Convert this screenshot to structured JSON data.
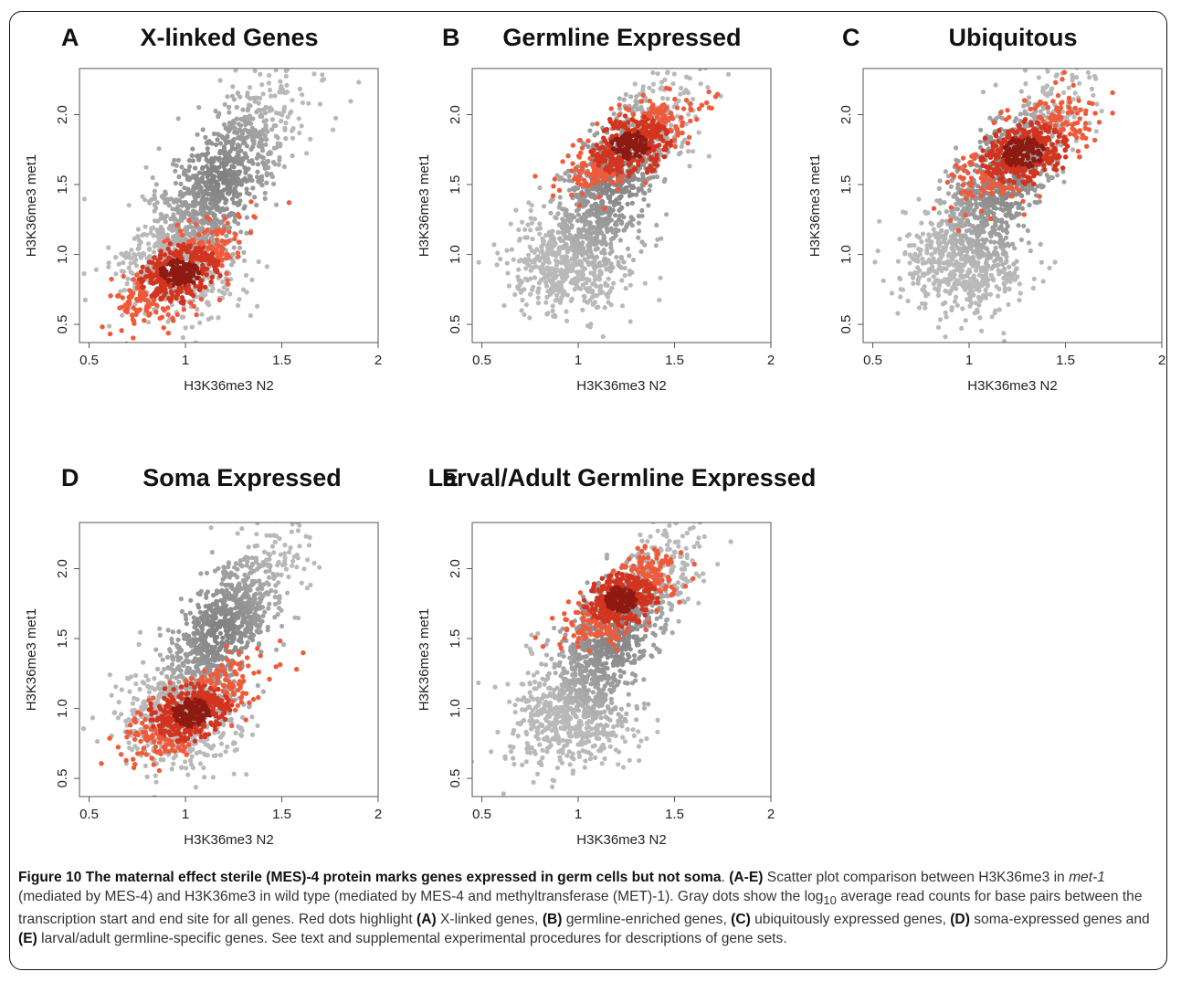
{
  "chart_data": [
    {
      "type": "scatter",
      "letter": "A",
      "title": "X-linked Genes",
      "xlabel": "H3K36me3 N2",
      "ylabel": "H3K36me3 met1",
      "xlim": [
        0.45,
        2.0
      ],
      "ylim": [
        0.37,
        2.33
      ],
      "xticks": [
        "0.5",
        "1",
        "1.5",
        "2"
      ],
      "yticks": [
        "0.5",
        "1.0",
        "1.5",
        "2.0"
      ],
      "background_density": {
        "center": [
          1.18,
          1.55
        ],
        "sd": [
          0.2,
          0.35
        ],
        "correlation": 0.78
      },
      "highlight": {
        "center": [
          0.97,
          0.87
        ],
        "spread": 0.2
      },
      "colors": {
        "gray": "#a9a9a9",
        "highlight": "#f05a3a",
        "dense": "#8e1a12"
      }
    },
    {
      "type": "scatter",
      "letter": "B",
      "title": "Germline Expressed",
      "xlabel": "H3K36me3 N2",
      "ylabel": "H3K36me3 met1",
      "xlim": [
        0.45,
        2.0
      ],
      "ylim": [
        0.37,
        2.33
      ],
      "xticks": [
        "0.5",
        "1",
        "1.5",
        "2"
      ],
      "yticks": [
        "0.5",
        "1.0",
        "1.5",
        "2.0"
      ],
      "background_density": {
        "center": [
          1.18,
          1.55
        ],
        "sd": [
          0.2,
          0.35
        ],
        "correlation": 0.78
      },
      "highlight": {
        "center": [
          1.27,
          1.78
        ],
        "spread": 0.2
      },
      "colors": {
        "gray": "#a9a9a9",
        "highlight": "#f05a3a",
        "dense": "#8e1a12"
      }
    },
    {
      "type": "scatter",
      "letter": "C",
      "title": "Ubiquitous",
      "xlabel": "H3K36me3 N2",
      "ylabel": "H3K36me3 met1",
      "xlim": [
        0.45,
        2.0
      ],
      "ylim": [
        0.37,
        2.33
      ],
      "xticks": [
        "0.5",
        "1",
        "1.5",
        "2"
      ],
      "yticks": [
        "0.5",
        "1.0",
        "1.5",
        "2.0"
      ],
      "background_density": {
        "center": [
          1.18,
          1.55
        ],
        "sd": [
          0.2,
          0.35
        ],
        "correlation": 0.78
      },
      "highlight": {
        "center": [
          1.28,
          1.73
        ],
        "spread": 0.22
      },
      "colors": {
        "gray": "#a9a9a9",
        "highlight": "#f05a3a",
        "dense": "#8e1a12"
      }
    },
    {
      "type": "scatter",
      "letter": "D",
      "title": "Soma Expressed",
      "xlabel": "H3K36me3 N2",
      "ylabel": "H3K36me3 met1",
      "xlim": [
        0.45,
        2.0
      ],
      "ylim": [
        0.37,
        2.33
      ],
      "xticks": [
        "0.5",
        "1",
        "1.5",
        "2"
      ],
      "yticks": [
        "0.5",
        "1.0",
        "1.5",
        "2.0"
      ],
      "background_density": {
        "center": [
          1.18,
          1.55
        ],
        "sd": [
          0.2,
          0.35
        ],
        "correlation": 0.78
      },
      "highlight": {
        "center": [
          1.03,
          0.97
        ],
        "spread": 0.2
      },
      "colors": {
        "gray": "#a9a9a9",
        "highlight": "#f05a3a",
        "dense": "#8e1a12"
      }
    },
    {
      "type": "scatter",
      "letter": "E",
      "title": "Larval/Adult Germline Expressed",
      "xlabel": "H3K36me3 N2",
      "ylabel": "H3K36me3 met1",
      "xlim": [
        0.45,
        2.0
      ],
      "ylim": [
        0.37,
        2.33
      ],
      "xticks": [
        "0.5",
        "1",
        "1.5",
        "2"
      ],
      "yticks": [
        "0.5",
        "1.0",
        "1.5",
        "2.0"
      ],
      "background_density": {
        "center": [
          1.18,
          1.55
        ],
        "sd": [
          0.2,
          0.35
        ],
        "correlation": 0.78
      },
      "highlight": {
        "center": [
          1.22,
          1.78
        ],
        "spread": 0.18
      },
      "colors": {
        "gray": "#a9a9a9",
        "highlight": "#f05a3a",
        "dense": "#8e1a12"
      }
    }
  ],
  "caption": {
    "figure_label": "Figure 10",
    "title": "The maternal effect sterile (MES)-4 protein marks genes expressed in germ cells but not soma",
    "body_html": ". <b>(A-E)</b> Scatter plot comparison between H3K36me3 in <i>met-1</i> (mediated by MES-4) and H3K36me3 in wild type (mediated by MES-4 and methyltransferase (MET)-1). Gray dots show the log<sub>10</sub> average read counts for base pairs between the transcription start and end site for all genes. Red dots highlight <b>(A)</b> X-linked genes, <b>(B)</b> germline-enriched genes, <b>(C)</b> ubiquitously expressed genes, <b>(D)</b> soma-expressed genes and <b>(E)</b> larval/adult germline-specific genes. See text and supplemental experimental procedures for descriptions of gene sets."
  }
}
